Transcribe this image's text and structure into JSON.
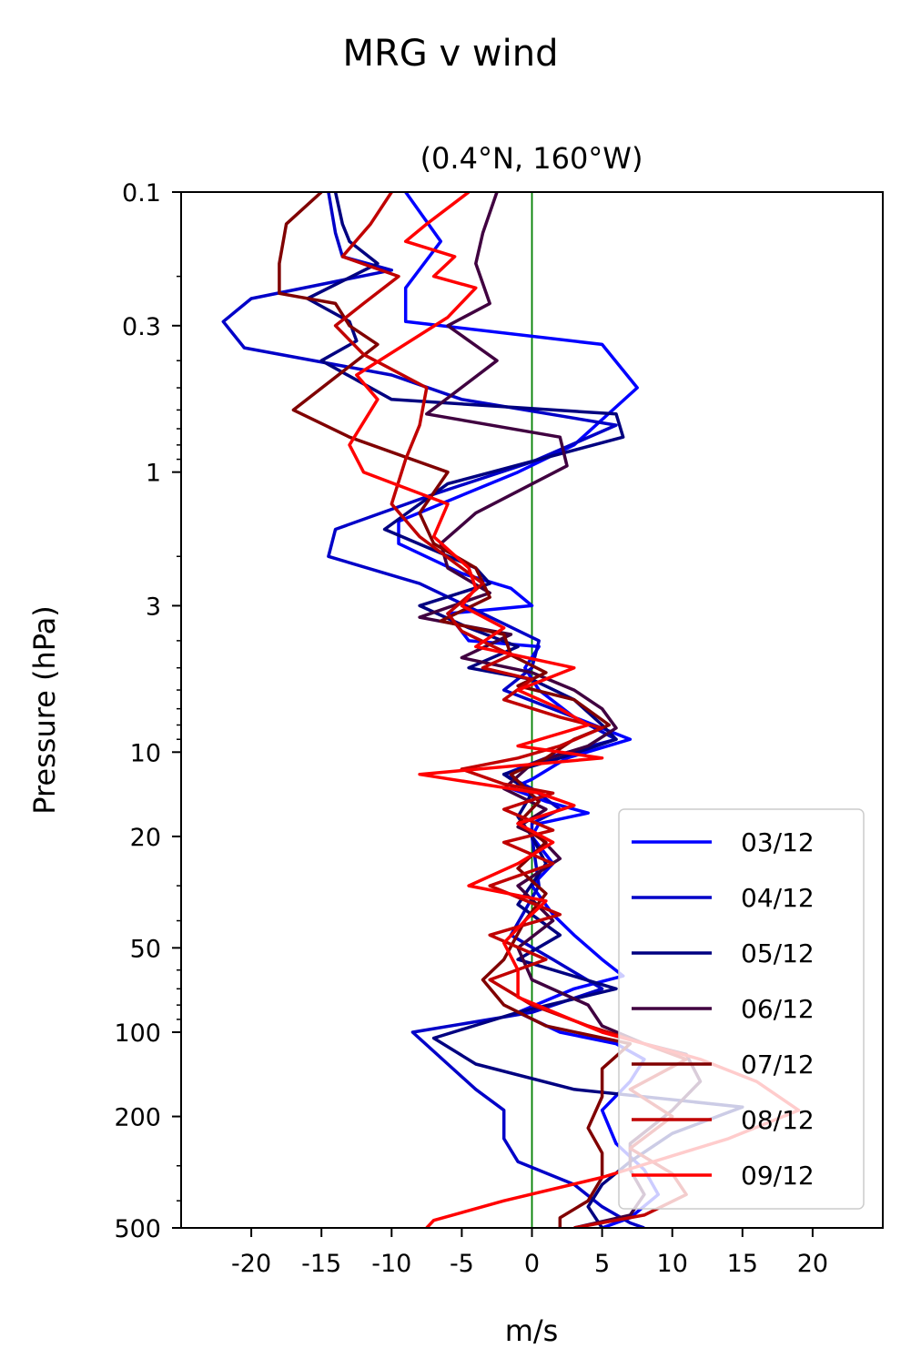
{
  "chart_data": {
    "type": "line",
    "title": "MRG v wind",
    "subtitle": "(0.4°N, 160°W)",
    "xlabel": "m/s",
    "ylabel": "Pressure (hPa)",
    "xlim": [
      -25,
      25
    ],
    "ylim": [
      500,
      0.1
    ],
    "yscale": "log",
    "x_ticks": [
      -20,
      -15,
      -10,
      -5,
      0,
      5,
      10,
      15,
      20
    ],
    "x_tick_labels": [
      "-20",
      "-15",
      "-10",
      "-5",
      "0",
      "5",
      "10",
      "15",
      "20"
    ],
    "y_ticks": [
      0.1,
      0.3,
      1,
      3,
      10,
      20,
      50,
      100,
      200,
      500
    ],
    "y_tick_labels": [
      "0.1",
      "0.3",
      "1",
      "3",
      "10",
      "20",
      "50",
      "100",
      "200",
      "500"
    ],
    "zero_line_color": "#008000",
    "legend_position": "lower right",
    "series": [
      {
        "name": "03/12",
        "color": "#0000ff",
        "points": [
          [
            -9,
            0.1
          ],
          [
            -6.5,
            0.15
          ],
          [
            -9,
            0.22
          ],
          [
            -9,
            0.29
          ],
          [
            5,
            0.35
          ],
          [
            7.5,
            0.5
          ],
          [
            3,
            0.8
          ],
          [
            -1,
            1.0
          ],
          [
            -9.5,
            1.5
          ],
          [
            -9.5,
            1.8
          ],
          [
            -5,
            2.3
          ],
          [
            -1.5,
            2.6
          ],
          [
            0,
            3.0
          ],
          [
            -6,
            3.2
          ],
          [
            -4.5,
            4.0
          ],
          [
            0.5,
            4.2
          ],
          [
            -0.5,
            5.0
          ],
          [
            0.5,
            6.0
          ],
          [
            3,
            7.5
          ],
          [
            7,
            9.0
          ],
          [
            2.5,
            10.5
          ],
          [
            0,
            12.5
          ],
          [
            -1.5,
            13.5
          ],
          [
            1,
            15.0
          ],
          [
            4,
            16.5
          ],
          [
            0.5,
            18.0
          ],
          [
            0,
            20.0
          ],
          [
            1.5,
            25.0
          ],
          [
            0,
            30.0
          ],
          [
            1.5,
            38.0
          ],
          [
            3,
            45.0
          ],
          [
            5,
            55.0
          ],
          [
            6.5,
            63.0
          ],
          [
            3,
            70.0
          ],
          [
            -1,
            85.0
          ],
          [
            2,
            100.0
          ],
          [
            6,
            110.0
          ],
          [
            8,
            125.0
          ],
          [
            7,
            150.0
          ],
          [
            5,
            190.0
          ],
          [
            6,
            250.0
          ],
          [
            8,
            310.0
          ],
          [
            9,
            380.0
          ],
          [
            7,
            460.0
          ],
          [
            5,
            500.0
          ]
        ]
      },
      {
        "name": "04/12",
        "color": "#0000c8",
        "points": [
          [
            -14.5,
            0.1
          ],
          [
            -14,
            0.14
          ],
          [
            -13.5,
            0.17
          ],
          [
            -10,
            0.19
          ],
          [
            -20,
            0.24
          ],
          [
            -22,
            0.29
          ],
          [
            -20.5,
            0.36
          ],
          [
            -10,
            0.45
          ],
          [
            -5,
            0.55
          ],
          [
            6,
            0.68
          ],
          [
            0,
            0.92
          ],
          [
            -7,
            1.2
          ],
          [
            -14,
            1.6
          ],
          [
            -14.5,
            2.0
          ],
          [
            -8,
            2.5
          ],
          [
            -3.5,
            3.2
          ],
          [
            0.5,
            4.0
          ],
          [
            0,
            5.0
          ],
          [
            -2,
            6.0
          ],
          [
            3,
            7.5
          ],
          [
            6,
            9.0
          ],
          [
            1,
            10.5
          ],
          [
            -2,
            12.0
          ],
          [
            0,
            13.5
          ],
          [
            2,
            16.0
          ],
          [
            0,
            18.0
          ],
          [
            0,
            20.0
          ],
          [
            0.5,
            30.0
          ],
          [
            -1.5,
            45.0
          ],
          [
            1.5,
            55.0
          ],
          [
            5,
            70.0
          ],
          [
            0,
            85.0
          ],
          [
            -8.5,
            100.0
          ],
          [
            -6,
            130.0
          ],
          [
            -4,
            160.0
          ],
          [
            -2,
            190.0
          ],
          [
            -2,
            240.0
          ],
          [
            -1,
            290.0
          ],
          [
            3,
            350.0
          ],
          [
            5,
            420.0
          ],
          [
            7,
            480.0
          ],
          [
            8,
            500.0
          ]
        ]
      },
      {
        "name": "05/12",
        "color": "#000080",
        "points": [
          [
            -14,
            0.1
          ],
          [
            -13.5,
            0.13
          ],
          [
            -13,
            0.15
          ],
          [
            -11,
            0.18
          ],
          [
            -16,
            0.24
          ],
          [
            -13,
            0.29
          ],
          [
            -12.5,
            0.34
          ],
          [
            -15,
            0.4
          ],
          [
            -10,
            0.55
          ],
          [
            6,
            0.62
          ],
          [
            6.5,
            0.75
          ],
          [
            -6,
            1.1
          ],
          [
            -10.5,
            1.6
          ],
          [
            -7,
            1.9
          ],
          [
            -4,
            2.2
          ],
          [
            -3,
            2.5
          ],
          [
            -8,
            3.0
          ],
          [
            -4.5,
            3.6
          ],
          [
            -1,
            4.2
          ],
          [
            -4.5,
            5.0
          ],
          [
            0,
            5.5
          ],
          [
            3,
            6.5
          ],
          [
            5,
            8.0
          ],
          [
            6,
            9.0
          ],
          [
            2,
            10.5
          ],
          [
            -2,
            12.0
          ],
          [
            0,
            14.0
          ],
          [
            -1,
            17.0
          ],
          [
            0,
            20.0
          ],
          [
            1,
            25.0
          ],
          [
            -1,
            35.0
          ],
          [
            2,
            45.0
          ],
          [
            -1,
            55.0
          ],
          [
            6,
            70.0
          ],
          [
            -1,
            85.0
          ],
          [
            -7,
            105.0
          ],
          [
            -4,
            130.0
          ],
          [
            3,
            160.0
          ],
          [
            15,
            185.0
          ],
          [
            10,
            230.0
          ],
          [
            7,
            290.0
          ],
          [
            5,
            350.0
          ],
          [
            4,
            420.0
          ],
          [
            5,
            500.0
          ]
        ]
      },
      {
        "name": "06/12",
        "color": "#400040",
        "points": [
          [
            -2.5,
            0.1
          ],
          [
            -3.5,
            0.14
          ],
          [
            -4,
            0.18
          ],
          [
            -3,
            0.25
          ],
          [
            -6,
            0.3
          ],
          [
            -2.5,
            0.4
          ],
          [
            -7.5,
            0.62
          ],
          [
            2,
            0.75
          ],
          [
            2.5,
            0.95
          ],
          [
            -4,
            1.4
          ],
          [
            -6.5,
            1.8
          ],
          [
            -6,
            2.2
          ],
          [
            -3,
            2.7
          ],
          [
            -8,
            3.3
          ],
          [
            -1.5,
            3.8
          ],
          [
            -5,
            4.6
          ],
          [
            0,
            5.2
          ],
          [
            3,
            6.0
          ],
          [
            5,
            7.0
          ],
          [
            6,
            8.2
          ],
          [
            4,
            9.5
          ],
          [
            0,
            11.0
          ],
          [
            -2,
            13.5
          ],
          [
            1,
            16.0
          ],
          [
            -1,
            18.5
          ],
          [
            0.5,
            20.0
          ],
          [
            2,
            24.0
          ],
          [
            -1,
            30.0
          ],
          [
            1.5,
            40.0
          ],
          [
            -1,
            50.0
          ],
          [
            0,
            65.0
          ],
          [
            4,
            80.0
          ],
          [
            5,
            95.0
          ],
          [
            8,
            110.0
          ],
          [
            11,
            120.0
          ],
          [
            12,
            150.0
          ],
          [
            10,
            190.0
          ],
          [
            7,
            250.0
          ],
          [
            7,
            310.0
          ],
          [
            8,
            380.0
          ],
          [
            7,
            450.0
          ],
          [
            3,
            500.0
          ]
        ]
      },
      {
        "name": "07/12",
        "color": "#800000",
        "points": [
          [
            -15,
            0.1
          ],
          [
            -17.5,
            0.13
          ],
          [
            -18,
            0.18
          ],
          [
            -18,
            0.23
          ],
          [
            -14,
            0.25
          ],
          [
            -13,
            0.3
          ],
          [
            -11,
            0.35
          ],
          [
            -17,
            0.6
          ],
          [
            -13,
            0.75
          ],
          [
            -6,
            1.0
          ],
          [
            -8,
            1.4
          ],
          [
            -7,
            1.8
          ],
          [
            -4,
            2.2
          ],
          [
            -3,
            2.8
          ],
          [
            -6.5,
            3.4
          ],
          [
            -2,
            3.8
          ],
          [
            -1.5,
            4.5
          ],
          [
            1,
            5.2
          ],
          [
            -1,
            5.8
          ],
          [
            3,
            6.5
          ],
          [
            5.5,
            8.0
          ],
          [
            3,
            9.0
          ],
          [
            1,
            10.5
          ],
          [
            -1.5,
            12.0
          ],
          [
            0.5,
            15.0
          ],
          [
            -1,
            18.0
          ],
          [
            1,
            21.0
          ],
          [
            -1,
            26.0
          ],
          [
            1,
            32.0
          ],
          [
            -0.5,
            40.0
          ],
          [
            -2,
            55.0
          ],
          [
            -3.5,
            65.0
          ],
          [
            -2,
            80.0
          ],
          [
            1,
            95.0
          ],
          [
            7,
            110.0
          ],
          [
            5,
            135.0
          ],
          [
            5,
            170.0
          ],
          [
            4,
            220.0
          ],
          [
            5,
            270.0
          ],
          [
            5,
            330.0
          ],
          [
            4,
            400.0
          ],
          [
            2,
            460.0
          ],
          [
            2,
            500.0
          ]
        ]
      },
      {
        "name": "08/12",
        "color": "#c00000",
        "points": [
          [
            -10,
            0.1
          ],
          [
            -11.5,
            0.13
          ],
          [
            -13.5,
            0.17
          ],
          [
            -9.5,
            0.2
          ],
          [
            -12,
            0.25
          ],
          [
            -14,
            0.3
          ],
          [
            -12,
            0.38
          ],
          [
            -7.5,
            0.5
          ],
          [
            -8,
            0.68
          ],
          [
            -9,
            0.9
          ],
          [
            -10,
            1.3
          ],
          [
            -8,
            1.7
          ],
          [
            -5,
            2.2
          ],
          [
            -3.5,
            2.5
          ],
          [
            -6,
            3.2
          ],
          [
            -5,
            3.7
          ],
          [
            -1.5,
            4.5
          ],
          [
            -3.5,
            5.0
          ],
          [
            0,
            5.5
          ],
          [
            -2,
            6.5
          ],
          [
            2,
            7.5
          ],
          [
            5,
            8.2
          ],
          [
            2,
            9.5
          ],
          [
            -1,
            10.5
          ],
          [
            -5,
            11.5
          ],
          [
            -2,
            13.0
          ],
          [
            1.5,
            14.0
          ],
          [
            -2,
            16.0
          ],
          [
            1.5,
            19.0
          ],
          [
            -2,
            21.0
          ],
          [
            1.5,
            25.0
          ],
          [
            -3,
            30.0
          ],
          [
            2,
            38.0
          ],
          [
            -3,
            45.0
          ],
          [
            1,
            55.0
          ],
          [
            -3,
            65.0
          ],
          [
            0,
            80.0
          ],
          [
            4,
            95.0
          ],
          [
            8,
            110.0
          ],
          [
            11,
            125.0
          ],
          [
            7,
            160.0
          ],
          [
            10,
            200.0
          ],
          [
            7,
            260.0
          ],
          [
            10,
            320.0
          ],
          [
            11,
            380.0
          ],
          [
            8,
            450.0
          ],
          [
            3,
            500.0
          ]
        ]
      },
      {
        "name": "09/12",
        "color": "#ff0000",
        "points": [
          [
            -4.5,
            0.1
          ],
          [
            -7.5,
            0.13
          ],
          [
            -9,
            0.15
          ],
          [
            -5.5,
            0.17
          ],
          [
            -7,
            0.2
          ],
          [
            -4,
            0.22
          ],
          [
            -6,
            0.28
          ],
          [
            -12.5,
            0.45
          ],
          [
            -11,
            0.55
          ],
          [
            -13,
            0.8
          ],
          [
            -12,
            1.0
          ],
          [
            -6,
            1.3
          ],
          [
            -7,
            1.7
          ],
          [
            -4.5,
            2.2
          ],
          [
            -4,
            2.6
          ],
          [
            -5,
            3.0
          ],
          [
            -2,
            3.6
          ],
          [
            -4,
            4.2
          ],
          [
            3,
            5.0
          ],
          [
            -1,
            6.0
          ],
          [
            2,
            7.0
          ],
          [
            4,
            8.0
          ],
          [
            -1,
            9.5
          ],
          [
            5,
            10.5
          ],
          [
            -8,
            12.0
          ],
          [
            0.5,
            14.0
          ],
          [
            3,
            15.5
          ],
          [
            -1,
            18.0
          ],
          [
            1.5,
            21.0
          ],
          [
            -1,
            25.0
          ],
          [
            -4.5,
            30.0
          ],
          [
            1,
            34.0
          ],
          [
            -0.5,
            40.0
          ],
          [
            -2,
            48.0
          ],
          [
            -1,
            60.0
          ],
          [
            -1,
            75.0
          ],
          [
            5,
            100.0
          ],
          [
            8,
            110.0
          ],
          [
            12,
            125.0
          ],
          [
            16,
            150.0
          ],
          [
            19,
            190.0
          ],
          [
            14,
            240.0
          ],
          [
            5,
            330.0
          ],
          [
            -2,
            400.0
          ],
          [
            -7,
            470.0
          ],
          [
            -7.5,
            500.0
          ]
        ]
      }
    ]
  }
}
